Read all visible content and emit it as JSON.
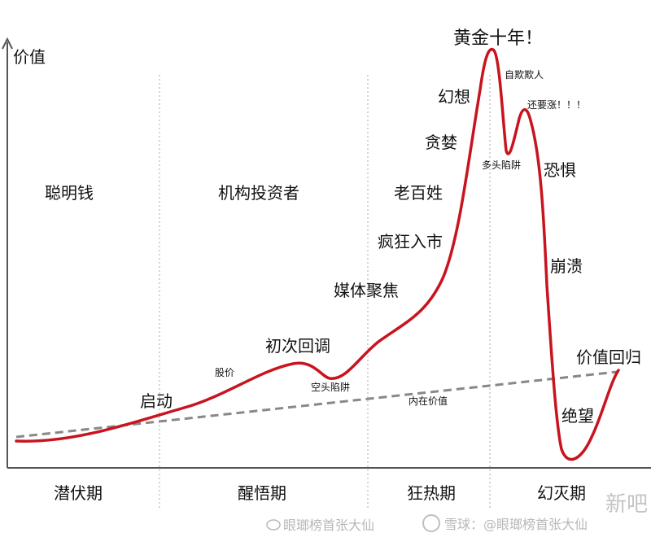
{
  "axis": {
    "y_label": "价值"
  },
  "phases": [
    "潜伏期",
    "醒悟期",
    "狂热期",
    "幻灭期"
  ],
  "participants": [
    "聪明钱",
    "机构投资者",
    "老百姓"
  ],
  "curve_labels": {
    "start": "启动",
    "price": "股价",
    "first_pullback": "初次回调",
    "bear_trap": "空头陷阱",
    "intrinsic_value": "内在价值",
    "media": "媒体聚焦",
    "frenzy": "疯狂入市",
    "greed": "贪婪",
    "fantasy": "幻想",
    "peak": "黄金十年！",
    "self_deception": "自欺欺人",
    "bull_trap": "多头陷阱",
    "more_gains": "还要涨！！！",
    "fear": "恐惧",
    "collapse": "崩溃",
    "despair": "绝望",
    "return_to_value": "价值回归"
  },
  "watermarks": {
    "left": "眼瑯榜首张大仙",
    "right": "雪球：@眼瑯榜首张大仙",
    "corner": "新吧"
  },
  "colors": {
    "price_line": "#c8141e",
    "value_line": "#888888",
    "axis": "#555555"
  }
}
